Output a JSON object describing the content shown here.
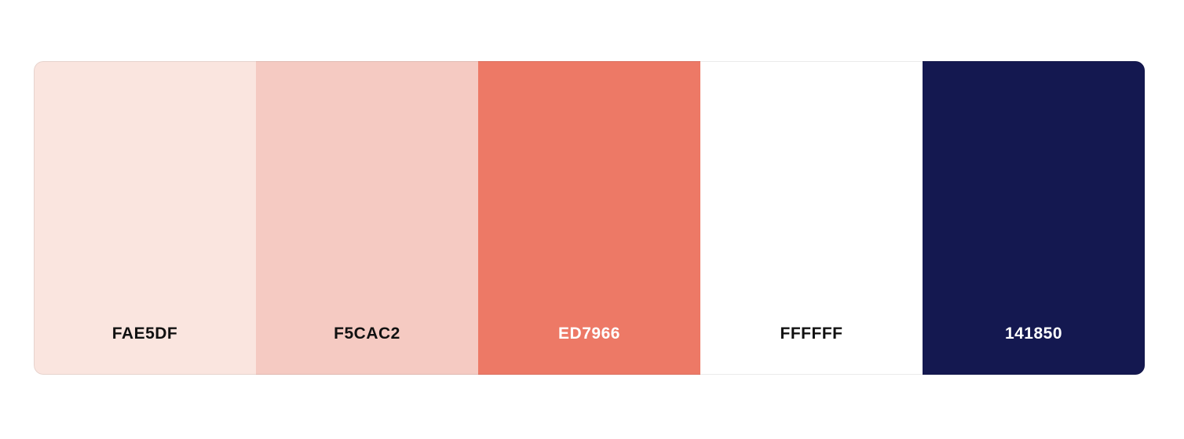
{
  "palette": {
    "swatches": [
      {
        "hex": "FAE5DF",
        "color": "#FAE5DF",
        "text_color": "#111111"
      },
      {
        "hex": "F5CAC2",
        "color": "#F5CAC2",
        "text_color": "#111111"
      },
      {
        "hex": "ED7966",
        "color": "#ED7966",
        "text_color": "#FFFFFF"
      },
      {
        "hex": "FFFFFF",
        "color": "#FFFFFF",
        "text_color": "#111111"
      },
      {
        "hex": "141850",
        "color": "#141850",
        "text_color": "#FFFFFF"
      }
    ]
  }
}
